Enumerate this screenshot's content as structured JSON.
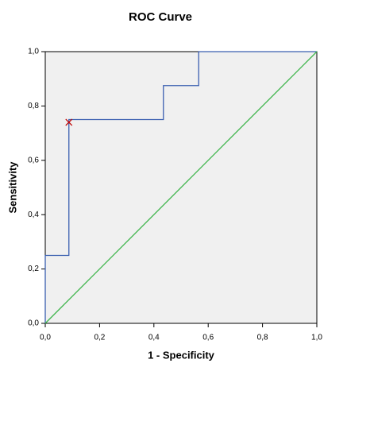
{
  "chart_data": {
    "type": "line",
    "title": "ROC Curve",
    "x_label": "1 - Specificity",
    "y_label": "Sensitivity",
    "xlim": [
      0,
      1
    ],
    "ylim": [
      0,
      1
    ],
    "xticks": [
      {
        "value": 0,
        "label": "0,0"
      },
      {
        "value": 0.2,
        "label": "0,2"
      },
      {
        "value": 0.4,
        "label": "0,4"
      },
      {
        "value": 0.6,
        "label": "0,6"
      },
      {
        "value": 0.8,
        "label": "0,8"
      },
      {
        "value": 1,
        "label": "1,0"
      }
    ],
    "yticks": [
      {
        "value": 0,
        "label": "0,0"
      },
      {
        "value": 0.2,
        "label": "0,2"
      },
      {
        "value": 0.4,
        "label": "0,4"
      },
      {
        "value": 0.6,
        "label": "0,6"
      },
      {
        "value": 0.8,
        "label": "0,8"
      },
      {
        "value": 1,
        "label": "1,0"
      }
    ],
    "plot_background": "#f0f0f0",
    "series": [
      {
        "color": "#3a5fb0",
        "x": [
          0,
          0,
          0.087,
          0.087,
          0.435,
          0.435,
          0.565,
          0.565,
          1
        ],
        "values": [
          0,
          0.25,
          0.25,
          0.75,
          0.75,
          0.875,
          0.875,
          1,
          1
        ]
      },
      {
        "color": "#3cb44a",
        "x": [
          0,
          1
        ],
        "values": [
          0,
          1
        ]
      }
    ],
    "marker": {
      "x": 0.087,
      "y": 0.74,
      "color": "#c00000"
    }
  }
}
